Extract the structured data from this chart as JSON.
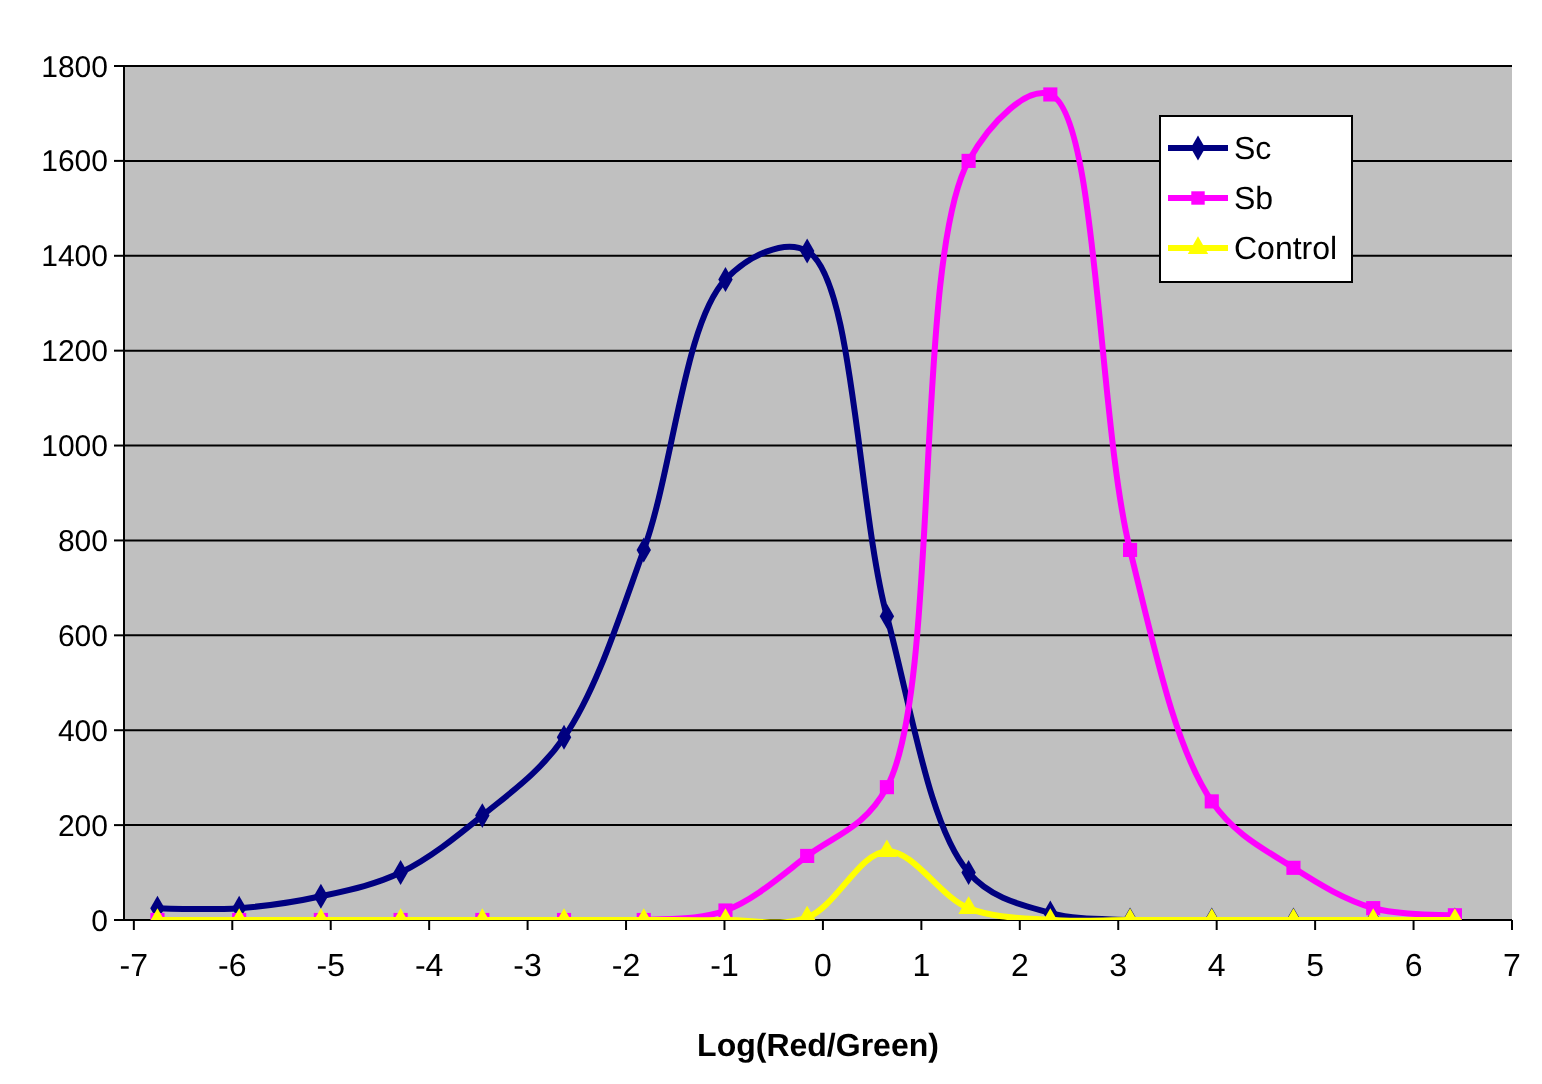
{
  "chart_data": {
    "type": "line",
    "xlabel": "Log(Red/Green)",
    "x": [
      -6.76,
      -5.93,
      -5.1,
      -4.29,
      -3.46,
      -2.63,
      -1.82,
      -0.99,
      -0.16,
      0.65,
      1.48,
      2.31,
      3.12,
      3.95,
      4.78,
      5.59,
      6.42
    ],
    "series": [
      {
        "name": "Sc",
        "color": "#000080",
        "marker": "diamond",
        "values": [
          25,
          25,
          50,
          100,
          220,
          385,
          780,
          1350,
          1410,
          640,
          100,
          15,
          0,
          0,
          0,
          0,
          0
        ]
      },
      {
        "name": "Sb",
        "color": "#ff00ff",
        "marker": "square",
        "values": [
          0,
          0,
          0,
          0,
          0,
          0,
          0,
          20,
          135,
          280,
          1600,
          1740,
          780,
          250,
          110,
          25,
          10
        ]
      },
      {
        "name": "Control",
        "color": "#ffff00",
        "marker": "triangle",
        "values": [
          0,
          0,
          0,
          0,
          0,
          0,
          0,
          0,
          5,
          145,
          25,
          0,
          0,
          0,
          0,
          0,
          0
        ]
      }
    ],
    "xlim": [
      -7.1,
      7
    ],
    "xticks": [
      -7,
      -6,
      -5,
      -4,
      -3,
      -2,
      -1,
      0,
      1,
      2,
      3,
      4,
      5,
      6,
      7
    ],
    "ylim": [
      0,
      1800
    ],
    "yticks": [
      0,
      200,
      400,
      600,
      800,
      1000,
      1200,
      1400,
      1600,
      1800
    ],
    "grid": "y",
    "legend": "top right"
  }
}
